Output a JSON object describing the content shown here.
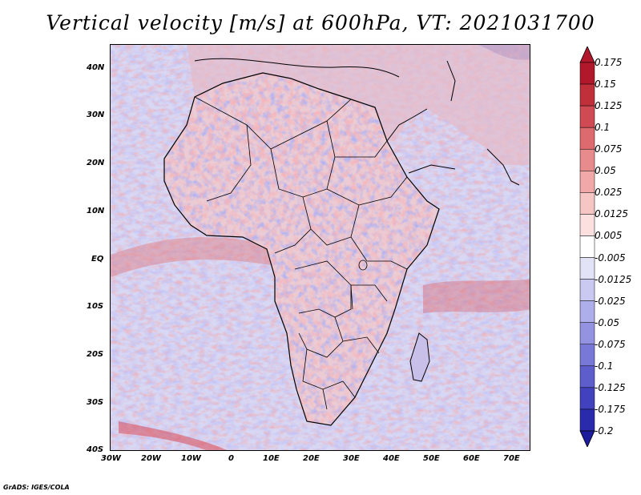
{
  "title": "Vertical velocity [m/s] at 600hPa, VT: 2021031700",
  "map": {
    "variable": "Vertical velocity",
    "units": "m/s",
    "level": "600hPa",
    "valid_time": "2021031700",
    "lon_range": [
      -30,
      75
    ],
    "lat_range": [
      -40,
      45
    ],
    "lat_ticks": [
      "40N",
      "30N",
      "20N",
      "10N",
      "EQ",
      "10S",
      "20S",
      "30S",
      "40S"
    ],
    "lon_ticks": [
      "30W",
      "20W",
      "10W",
      "0",
      "10E",
      "20E",
      "30E",
      "40E",
      "50E",
      "60E",
      "70E"
    ],
    "colors": {
      "ocean_base": "#d8d8f4",
      "land_base": "#ecccd4",
      "coast": "#000000"
    }
  },
  "colorbar": {
    "levels": [
      "0.175",
      "0.15",
      "0.125",
      "0.1",
      "0.075",
      "0.05",
      "0.025",
      "0.0125",
      "0.005",
      "-0.005",
      "-0.0125",
      "-0.025",
      "-0.05",
      "-0.075",
      "-0.1",
      "-0.125",
      "-0.175",
      "-0.2"
    ],
    "colors": [
      "#b2182b",
      "#c0303a",
      "#cf4a52",
      "#dd6a6e",
      "#e88b8c",
      "#f0a9a8",
      "#f6c6c4",
      "#fbe0df",
      "#ffffff",
      "#e3e3f8",
      "#c9c9f2",
      "#aeaeeb",
      "#9393e2",
      "#7878d8",
      "#5d5dcc",
      "#4242be",
      "#2a2aac"
    ],
    "top_color": "#b2182b",
    "bottom_color": "#1c1c9c"
  },
  "credit": "GrADS: IGES/COLA"
}
